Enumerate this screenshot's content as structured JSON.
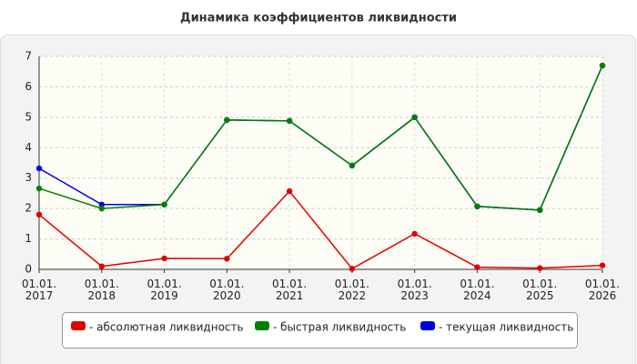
{
  "chart_data": {
    "type": "line",
    "title": "Динамика коэффициентов ликвидности",
    "categories": [
      "01.01.\n2017",
      "01.01.\n2018",
      "01.01.\n2019",
      "01.01.\n2020",
      "01.01.\n2021",
      "01.01.\n2022",
      "01.01.\n2023",
      "01.01.\n2024",
      "01.01.\n2025",
      "01.01.\n2026"
    ],
    "series": [
      {
        "name": "- абсолютная ликвидность",
        "color": "#e00000",
        "values": [
          1.8,
          0.1,
          0.36,
          0.35,
          2.57,
          0.02,
          1.17,
          0.07,
          0.04,
          0.13
        ]
      },
      {
        "name": "- быстрая ликвидность",
        "color": "#008000",
        "values": [
          2.66,
          2.0,
          2.13,
          4.91,
          4.88,
          3.41,
          5.0,
          2.07,
          1.95,
          6.7
        ]
      },
      {
        "name": "- текущая ликвидность",
        "color": "#0000e0",
        "values": [
          3.32,
          2.13,
          2.13,
          4.91,
          4.88,
          3.41,
          5.0,
          2.07,
          1.95,
          6.7
        ]
      }
    ],
    "ylim": [
      0,
      7
    ],
    "yticks": [
      0,
      1,
      2,
      3,
      4,
      5,
      6,
      7
    ],
    "grid": true,
    "legend": "bottom"
  }
}
